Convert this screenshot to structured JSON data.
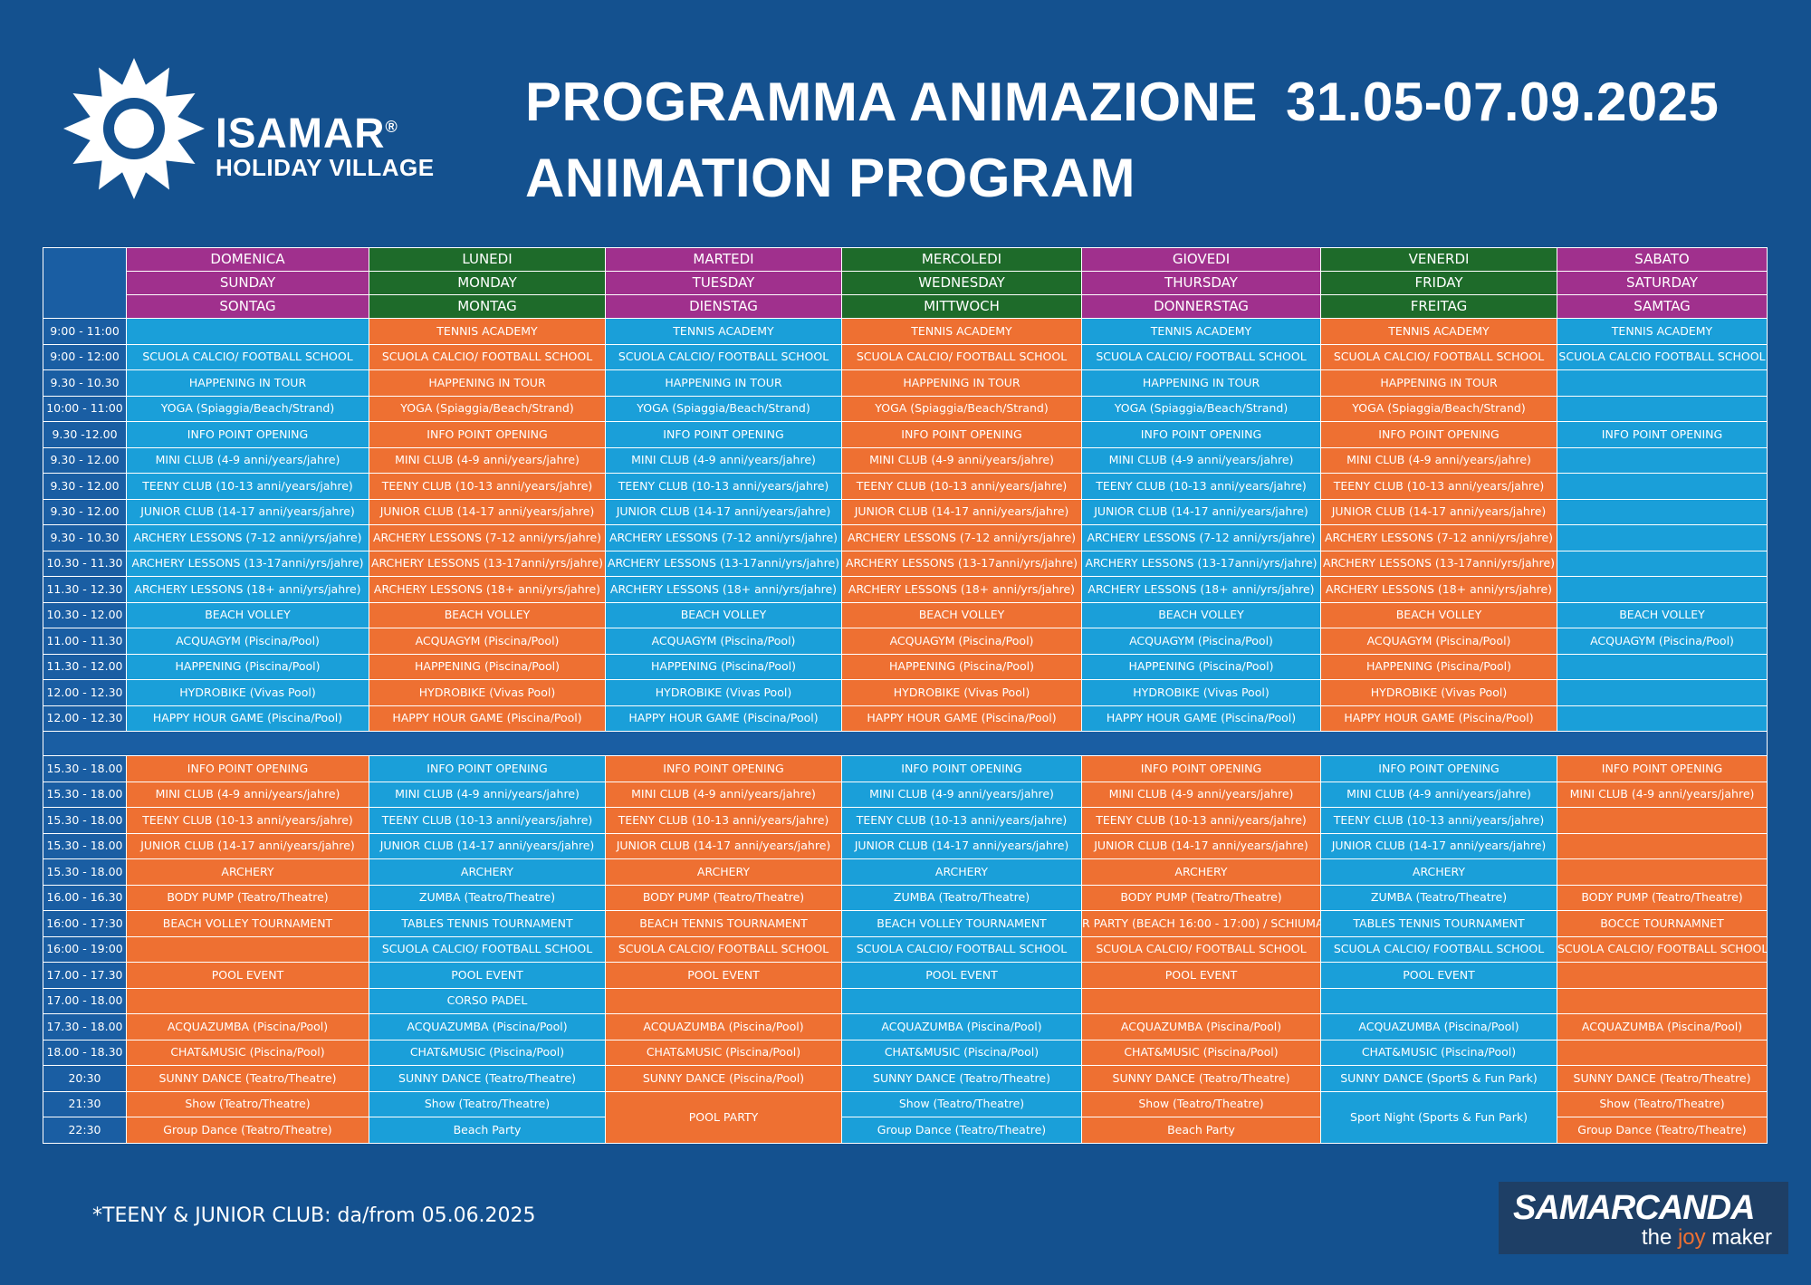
{
  "brand": {
    "name": "ISAMAR",
    "reg": "®",
    "subtitle": "HOLIDAY VILLAGE"
  },
  "header": {
    "title_it": "PROGRAMMA ANIMAZIONE",
    "title_en": "ANIMATION PROGRAM",
    "dates": "31.05-07.09.2025"
  },
  "days": [
    {
      "l1": "DOMENICA",
      "l2": "SUNDAY",
      "l3": "SONTAG",
      "color": "#a0308d"
    },
    {
      "l1": "LUNEDI",
      "l2": "MONDAY",
      "l3": "MONTAG",
      "color": "#1e6b2a"
    },
    {
      "l1": "MARTEDI",
      "l2": "TUESDAY",
      "l3": "DIENSTAG",
      "color": "#a0308d"
    },
    {
      "l1": "MERCOLEDI",
      "l2": "WEDNESDAY",
      "l3": "MITTWOCH",
      "color": "#1e6b2a"
    },
    {
      "l1": "GIOVEDI",
      "l2": "THURSDAY",
      "l3": "DONNERSTAG",
      "color": "#a0308d"
    },
    {
      "l1": "VENERDI",
      "l2": "FRIDAY",
      "l3": "FREITAG",
      "color": "#1e6b2a"
    },
    {
      "l1": "SABATO",
      "l2": "SATURDAY",
      "l3": "SAMTAG",
      "color": "#a0308d"
    }
  ],
  "morning": [
    {
      "time": "9:00 - 11:00",
      "cells": [
        "",
        "TENNIS ACADEMY",
        "TENNIS ACADEMY",
        "TENNIS ACADEMY",
        "TENNIS ACADEMY",
        "TENNIS ACADEMY",
        "TENNIS ACADEMY"
      ]
    },
    {
      "time": "9:00 - 12:00",
      "cells": [
        "SCUOLA CALCIO/ FOOTBALL SCHOOL",
        "SCUOLA CALCIO/ FOOTBALL SCHOOL",
        "SCUOLA CALCIO/ FOOTBALL SCHOOL",
        "SCUOLA CALCIO/ FOOTBALL SCHOOL",
        "SCUOLA CALCIO/ FOOTBALL SCHOOL",
        "SCUOLA CALCIO/ FOOTBALL SCHOOL",
        "SCUOLA CALCIO FOOTBALL SCHOOL"
      ]
    },
    {
      "time": "9.30 - 10.30",
      "cells": [
        "HAPPENING IN TOUR",
        "HAPPENING IN TOUR",
        "HAPPENING IN TOUR",
        "HAPPENING IN TOUR",
        "HAPPENING IN TOUR",
        "HAPPENING IN TOUR",
        ""
      ]
    },
    {
      "time": "10:00 - 11:00",
      "cells": [
        "YOGA (Spiaggia/Beach/Strand)",
        "YOGA (Spiaggia/Beach/Strand)",
        "YOGA (Spiaggia/Beach/Strand)",
        "YOGA (Spiaggia/Beach/Strand)",
        "YOGA (Spiaggia/Beach/Strand)",
        "YOGA (Spiaggia/Beach/Strand)",
        ""
      ]
    },
    {
      "time": "9.30 -12.00",
      "cells": [
        "INFO POINT OPENING",
        "INFO POINT OPENING",
        "INFO POINT OPENING",
        "INFO POINT OPENING",
        "INFO POINT OPENING",
        "INFO POINT OPENING",
        "INFO POINT OPENING"
      ]
    },
    {
      "time": "9.30 - 12.00",
      "cells": [
        "MINI CLUB (4-9 anni/years/jahre)",
        "MINI CLUB (4-9 anni/years/jahre)",
        "MINI CLUB (4-9 anni/years/jahre)",
        "MINI CLUB (4-9 anni/years/jahre)",
        "MINI CLUB (4-9 anni/years/jahre)",
        "MINI CLUB (4-9 anni/years/jahre)",
        ""
      ]
    },
    {
      "time": "9.30 - 12.00",
      "cells": [
        "TEENY CLUB (10-13 anni/years/jahre)",
        "TEENY CLUB (10-13 anni/years/jahre)",
        "TEENY CLUB (10-13 anni/years/jahre)",
        "TEENY CLUB (10-13 anni/years/jahre)",
        "TEENY CLUB (10-13 anni/years/jahre)",
        "TEENY CLUB (10-13 anni/years/jahre)",
        ""
      ]
    },
    {
      "time": "9.30 - 12.00",
      "cells": [
        "JUNIOR CLUB (14-17 anni/years/jahre)",
        "JUNIOR CLUB (14-17 anni/years/jahre)",
        "JUNIOR CLUB (14-17 anni/years/jahre)",
        "JUNIOR CLUB (14-17 anni/years/jahre)",
        "JUNIOR CLUB (14-17 anni/years/jahre)",
        "JUNIOR CLUB (14-17 anni/years/jahre)",
        ""
      ]
    },
    {
      "time": "9.30 - 10.30",
      "cells": [
        "ARCHERY LESSONS (7-12 anni/yrs/jahre)",
        "ARCHERY LESSONS (7-12 anni/yrs/jahre)",
        "ARCHERY LESSONS (7-12 anni/yrs/jahre)",
        "ARCHERY LESSONS (7-12 anni/yrs/jahre)",
        "ARCHERY LESSONS (7-12 anni/yrs/jahre)",
        "ARCHERY LESSONS (7-12 anni/yrs/jahre)",
        ""
      ]
    },
    {
      "time": "10.30 - 11.30",
      "cells": [
        "ARCHERY LESSONS (13-17anni/yrs/jahre)",
        "ARCHERY LESSONS (13-17anni/yrs/jahre)",
        "ARCHERY LESSONS (13-17anni/yrs/jahre)",
        "ARCHERY LESSONS (13-17anni/yrs/jahre)",
        "ARCHERY LESSONS (13-17anni/yrs/jahre)",
        "ARCHERY LESSONS (13-17anni/yrs/jahre)",
        ""
      ]
    },
    {
      "time": "11.30 - 12.30",
      "cells": [
        "ARCHERY LESSONS (18+ anni/yrs/jahre)",
        "ARCHERY LESSONS (18+ anni/yrs/jahre)",
        "ARCHERY LESSONS (18+ anni/yrs/jahre)",
        "ARCHERY LESSONS (18+ anni/yrs/jahre)",
        "ARCHERY LESSONS (18+ anni/yrs/jahre)",
        "ARCHERY LESSONS (18+ anni/yrs/jahre)",
        ""
      ]
    },
    {
      "time": "10.30 - 12.00",
      "cells": [
        "BEACH VOLLEY",
        "BEACH VOLLEY",
        "BEACH VOLLEY",
        "BEACH VOLLEY",
        "BEACH VOLLEY",
        "BEACH VOLLEY",
        "BEACH VOLLEY"
      ]
    },
    {
      "time": "11.00 - 11.30",
      "cells": [
        "ACQUAGYM (Piscina/Pool)",
        "ACQUAGYM (Piscina/Pool)",
        "ACQUAGYM (Piscina/Pool)",
        "ACQUAGYM (Piscina/Pool)",
        "ACQUAGYM (Piscina/Pool)",
        "ACQUAGYM (Piscina/Pool)",
        "ACQUAGYM (Piscina/Pool)"
      ]
    },
    {
      "time": "11.30 - 12.00",
      "cells": [
        "HAPPENING (Piscina/Pool)",
        "HAPPENING (Piscina/Pool)",
        "HAPPENING (Piscina/Pool)",
        "HAPPENING (Piscina/Pool)",
        "HAPPENING (Piscina/Pool)",
        "HAPPENING (Piscina/Pool)",
        ""
      ]
    },
    {
      "time": "12.00 - 12.30",
      "cells": [
        "HYDROBIKE (Vivas Pool)",
        "HYDROBIKE (Vivas Pool)",
        "HYDROBIKE (Vivas Pool)",
        "HYDROBIKE (Vivas Pool)",
        "HYDROBIKE (Vivas Pool)",
        "HYDROBIKE (Vivas Pool)",
        ""
      ]
    },
    {
      "time": "12.00 - 12.30",
      "cells": [
        "HAPPY HOUR GAME (Piscina/Pool)",
        "HAPPY HOUR GAME (Piscina/Pool)",
        "HAPPY HOUR GAME (Piscina/Pool)",
        "HAPPY HOUR GAME (Piscina/Pool)",
        "HAPPY HOUR GAME (Piscina/Pool)",
        "HAPPY HOUR GAME (Piscina/Pool)",
        ""
      ]
    }
  ],
  "afternoon": [
    {
      "time": "15.30 - 18.00",
      "cells": [
        "INFO POINT OPENING",
        "INFO POINT OPENING",
        "INFO POINT OPENING",
        "INFO POINT OPENING",
        "INFO POINT OPENING",
        "INFO POINT OPENING",
        "INFO POINT OPENING"
      ]
    },
    {
      "time": "15.30 - 18.00",
      "cells": [
        "MINI CLUB (4-9 anni/years/jahre)",
        "MINI CLUB (4-9 anni/years/jahre)",
        "MINI CLUB (4-9 anni/years/jahre)",
        "MINI CLUB (4-9 anni/years/jahre)",
        "MINI CLUB (4-9 anni/years/jahre)",
        "MINI CLUB (4-9 anni/years/jahre)",
        "MINI CLUB (4-9 anni/years/jahre)"
      ]
    },
    {
      "time": "15.30 - 18.00",
      "cells": [
        "TEENY CLUB (10-13 anni/years/jahre)",
        "TEENY CLUB (10-13 anni/years/jahre)",
        "TEENY CLUB (10-13 anni/years/jahre)",
        "TEENY CLUB (10-13 anni/years/jahre)",
        "TEENY CLUB (10-13 anni/years/jahre)",
        "TEENY CLUB (10-13 anni/years/jahre)",
        ""
      ]
    },
    {
      "time": "15.30 - 18.00",
      "cells": [
        "JUNIOR CLUB (14-17 anni/years/jahre)",
        "JUNIOR CLUB (14-17 anni/years/jahre)",
        "JUNIOR CLUB (14-17 anni/years/jahre)",
        "JUNIOR CLUB (14-17 anni/years/jahre)",
        "JUNIOR CLUB (14-17 anni/years/jahre)",
        "JUNIOR CLUB (14-17 anni/years/jahre)",
        ""
      ]
    },
    {
      "time": "15.30 - 18.00",
      "cells": [
        "ARCHERY",
        "ARCHERY",
        "ARCHERY",
        "ARCHERY",
        "ARCHERY",
        "ARCHERY",
        ""
      ]
    },
    {
      "time": "16.00 - 16.30",
      "cells": [
        "BODY PUMP (Teatro/Theatre)",
        "ZUMBA (Teatro/Theatre)",
        "BODY PUMP (Teatro/Theatre)",
        "ZUMBA (Teatro/Theatre)",
        "BODY PUMP (Teatro/Theatre)",
        "ZUMBA (Teatro/Theatre)",
        "BODY PUMP (Teatro/Theatre)"
      ]
    },
    {
      "time": "16:00 - 17:30",
      "cells": [
        "BEACH VOLLEY TOURNAMENT",
        "TABLES TENNIS TOURNAMENT",
        "BEACH TENNIS TOURNAMENT",
        "BEACH VOLLEY TOURNAMENT",
        "R PARTY (BEACH 16:00 - 17:00) / SCHIUMA",
        "TABLES TENNIS TOURNAMENT",
        "BOCCE TOURNAMNET"
      ]
    },
    {
      "time": "16:00 - 19:00",
      "cells": [
        "",
        "SCUOLA CALCIO/ FOOTBALL SCHOOL",
        "SCUOLA CALCIO/ FOOTBALL SCHOOL",
        "SCUOLA CALCIO/ FOOTBALL SCHOOL",
        "SCUOLA CALCIO/ FOOTBALL SCHOOL",
        "SCUOLA CALCIO/ FOOTBALL SCHOOL",
        "SCUOLA CALCIO/ FOOTBALL SCHOOL"
      ]
    },
    {
      "time": "17.00 - 17.30",
      "cells": [
        "POOL EVENT",
        "POOL EVENT",
        "POOL EVENT",
        "POOL EVENT",
        "POOL EVENT",
        "POOL EVENT",
        ""
      ]
    },
    {
      "time": "17.00 - 18.00",
      "cells": [
        "",
        "CORSO PADEL",
        "",
        "",
        "",
        "",
        ""
      ]
    },
    {
      "time": "17.30 - 18.00",
      "cells": [
        "ACQUAZUMBA (Piscina/Pool)",
        "ACQUAZUMBA (Piscina/Pool)",
        "ACQUAZUMBA (Piscina/Pool)",
        "ACQUAZUMBA (Piscina/Pool)",
        "ACQUAZUMBA (Piscina/Pool)",
        "ACQUAZUMBA (Piscina/Pool)",
        "ACQUAZUMBA (Piscina/Pool)"
      ]
    },
    {
      "time": "18.00 - 18.30",
      "cells": [
        "CHAT&MUSIC (Piscina/Pool)",
        "CHAT&MUSIC (Piscina/Pool)",
        "CHAT&MUSIC (Piscina/Pool)",
        "CHAT&MUSIC (Piscina/Pool)",
        "CHAT&MUSIC (Piscina/Pool)",
        "CHAT&MUSIC (Piscina/Pool)",
        ""
      ]
    },
    {
      "time": "20:30",
      "cells": [
        "SUNNY DANCE (Teatro/Theatre)",
        "SUNNY DANCE (Teatro/Theatre)",
        "SUNNY DANCE (Piscina/Pool)",
        "SUNNY DANCE (Teatro/Theatre)",
        "SUNNY DANCE (Teatro/Theatre)",
        "SUNNY DANCE (SportS & Fun Park)",
        "SUNNY DANCE (Teatro/Theatre)"
      ]
    },
    {
      "time": "21:30",
      "cells": [
        "Show (Teatro/Theatre)",
        "Show (Teatro/Theatre)",
        "POOL PARTY",
        "Show (Teatro/Theatre)",
        "Show (Teatro/Theatre)",
        "Sport Night (Sports & Fun Park)",
        "Show (Teatro/Theatre)"
      ]
    },
    {
      "time": "22:30",
      "cells": [
        "Group Dance (Teatro/Theatre)",
        "Beach Party",
        null,
        "Group Dance (Teatro/Theatre)",
        "Beach Party",
        null,
        "Group Dance (Teatro/Theatre)"
      ]
    }
  ],
  "footnote": "*TEENY & JUNIOR CLUB: da/from 05.06.2025",
  "samarcanda": {
    "name": "SAMARCANDA",
    "tagline_pre": "the ",
    "tagline_joy": "joy",
    "tagline_post": " maker"
  },
  "colors": {
    "background": "#14518f",
    "blue_cell": "#1a9fd9",
    "orange_cell": "#ee7032",
    "purple_header": "#a0308d",
    "green_header": "#1e6b2a"
  }
}
